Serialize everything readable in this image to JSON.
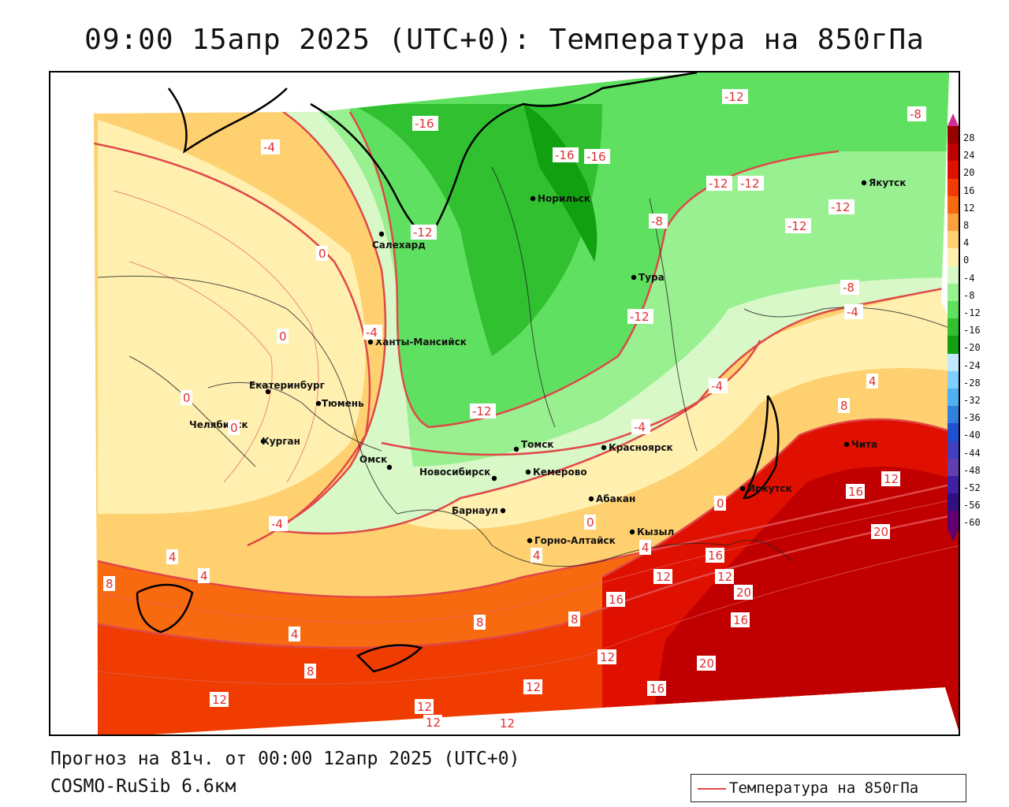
{
  "title": "09:00 15апр 2025 (UTC+0): Температура на 850гПа",
  "subtitle": "Прогноз на 81ч. от 00:00 12апр 2025 (UTC+0)",
  "model": "COSMO-RuSib 6.6км",
  "legend": {
    "label": "Температура на 850гПа",
    "color": "#e04848"
  },
  "colorbar": {
    "labels": [
      "28",
      "24",
      "20",
      "16",
      "12",
      "8",
      "4",
      "0",
      "-4",
      "-8",
      "-12",
      "-16",
      "-20",
      "-24",
      "-28",
      "-32",
      "-36",
      "-40",
      "-44",
      "-48",
      "-52",
      "-56",
      "-60"
    ],
    "colors": [
      "#9a0000",
      "#c00000",
      "#e01000",
      "#f03c00",
      "#f86a10",
      "#fca040",
      "#fed070",
      "#fff0b0",
      "#d8f8c8",
      "#98f090",
      "#60e060",
      "#30c030",
      "#10a010",
      "#c0e8ff",
      "#80d0ff",
      "#50b0f0",
      "#3080e0",
      "#2050d0",
      "#4040c0",
      "#6040b0",
      "#4020a0",
      "#301080",
      "#600070"
    ]
  },
  "cities": [
    {
      "name": "Салехард"
    },
    {
      "name": "Норильск"
    },
    {
      "name": "Якутск"
    },
    {
      "name": "Тура"
    },
    {
      "name": "Ханты-Мансийск"
    },
    {
      "name": "Екатеринбург"
    },
    {
      "name": "Тюмень"
    },
    {
      "name": "Челябинск"
    },
    {
      "name": "Курган"
    },
    {
      "name": "Омск"
    },
    {
      "name": "Новосибирск"
    },
    {
      "name": "Томск"
    },
    {
      "name": "Кемерово"
    },
    {
      "name": "Красноярск"
    },
    {
      "name": "Барнаул"
    },
    {
      "name": "Абакан"
    },
    {
      "name": "Иркутск"
    },
    {
      "name": "Чита"
    },
    {
      "name": "Горно-Алтайск"
    },
    {
      "name": "Кызыл"
    }
  ],
  "isotherm_labels": [
    "-16",
    "-16",
    "-16",
    "-12",
    "-12",
    "-12",
    "-12",
    "-12",
    "-12",
    "-12",
    "-12",
    "-8",
    "-8",
    "-8",
    "-4",
    "-4",
    "-4",
    "-4",
    "-4",
    "-4",
    "0",
    "0",
    "0",
    "0",
    "0",
    "0",
    "4",
    "4",
    "4",
    "4",
    "4",
    "4",
    "8",
    "8",
    "8",
    "8",
    "8",
    "12",
    "12",
    "12",
    "12",
    "12",
    "12",
    "12",
    "12",
    "12",
    "16",
    "16",
    "16",
    "16",
    "16",
    "20",
    "20",
    "20"
  ]
}
